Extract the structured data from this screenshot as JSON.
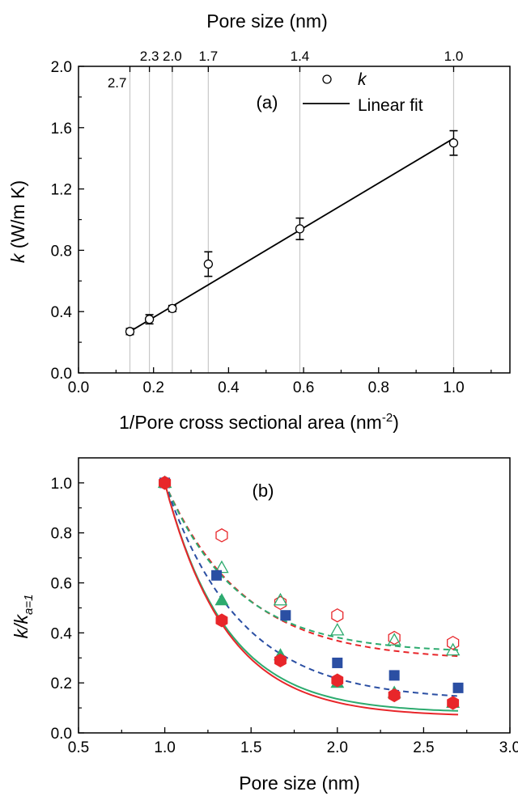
{
  "chart_data": [
    {
      "id": "a",
      "type": "scatter",
      "panel_label": "(a)",
      "xlabel": "1/Pore cross sectional area (nm",
      "xlabel_sup": "-2",
      "xlabel_end": ")",
      "ylabel_italic": "k",
      "ylabel_rest": " (W/m K)",
      "top_xlabel": "Pore size (nm)",
      "xlim": [
        0,
        1.15
      ],
      "ylim": [
        0,
        2.0
      ],
      "xticks": [
        "0.0",
        "0.2",
        "0.4",
        "0.6",
        "0.8",
        "1.0"
      ],
      "yticks": [
        "0.0",
        "0.4",
        "0.8",
        "1.2",
        "1.6",
        "2.0"
      ],
      "pore_lines": [
        {
          "x": 0.137,
          "label": "2.7"
        },
        {
          "x": 0.189,
          "label": "2.3"
        },
        {
          "x": 0.25,
          "label": "2.0"
        },
        {
          "x": 0.346,
          "label": "1.7"
        },
        {
          "x": 0.59,
          "label": "1.4"
        },
        {
          "x": 1.0,
          "label": "1.0"
        }
      ],
      "points": [
        {
          "x": 0.137,
          "y": 0.27,
          "err": 0.02
        },
        {
          "x": 0.189,
          "y": 0.35,
          "err": 0.03
        },
        {
          "x": 0.25,
          "y": 0.42,
          "err": 0.02
        },
        {
          "x": 0.346,
          "y": 0.71,
          "err": 0.08
        },
        {
          "x": 0.59,
          "y": 0.94,
          "err": 0.07
        },
        {
          "x": 1.0,
          "y": 1.5,
          "err": 0.08
        }
      ],
      "fit_line": {
        "x": [
          0.137,
          1.0
        ],
        "y": [
          0.27,
          1.53
        ]
      },
      "legend": [
        {
          "label": "k",
          "marker": "open-circle",
          "italic": true
        },
        {
          "label": "Linear fit",
          "marker": "line",
          "italic": false
        }
      ]
    },
    {
      "id": "b",
      "type": "scatter",
      "panel_label": "(b)",
      "xlabel": "Pore size (nm)",
      "ylabel_italic": "k/k",
      "ylabel_sub": "a=1",
      "xlim": [
        0.5,
        3.0
      ],
      "ylim": [
        0.0,
        1.1
      ],
      "xticks": [
        "0.5",
        "1.0",
        "1.5",
        "2.0",
        "2.5",
        "3.0"
      ],
      "yticks": [
        "0.0",
        "0.2",
        "0.4",
        "0.6",
        "0.8",
        "1.0"
      ],
      "series": [
        {
          "marker": "open-hexagon",
          "color": "#e8262a",
          "line": "dashed",
          "x": [
            1.0,
            1.33,
            1.67,
            2.0,
            2.33,
            2.67
          ],
          "y": [
            1.0,
            0.79,
            0.52,
            0.47,
            0.38,
            0.36
          ],
          "fit_k": 2.2,
          "fit_c": 0.29
        },
        {
          "marker": "open-triangle",
          "color": "#2dab6f",
          "line": "dashed",
          "x": [
            1.0,
            1.33,
            1.67,
            2.0,
            2.33,
            2.67
          ],
          "y": [
            1.0,
            0.66,
            0.53,
            0.41,
            0.37,
            0.33
          ],
          "fit_k": 2.4,
          "fit_c": 0.32
        },
        {
          "marker": "filled-square",
          "color": "#2b4fa3",
          "line": "dashed",
          "x": [
            1.0,
            1.3,
            1.7,
            2.0,
            2.33,
            2.7
          ],
          "y": [
            1.0,
            0.63,
            0.47,
            0.28,
            0.23,
            0.18
          ],
          "fit_k": 2.3,
          "fit_c": 0.13
        },
        {
          "marker": "filled-triangle",
          "color": "#2dab6f",
          "line": "solid",
          "x": [
            1.0,
            1.33,
            1.67,
            2.0,
            2.33,
            2.67
          ],
          "y": [
            1.0,
            0.53,
            0.31,
            0.2,
            0.16,
            0.12
          ],
          "fit_k": 2.8,
          "fit_c": 0.08
        },
        {
          "marker": "filled-hexagon",
          "color": "#e8262a",
          "line": "solid",
          "x": [
            1.0,
            1.33,
            1.67,
            2.0,
            2.33,
            2.67
          ],
          "y": [
            1.0,
            0.45,
            0.29,
            0.21,
            0.15,
            0.12
          ],
          "fit_k": 2.8,
          "fit_c": 0.065
        }
      ]
    }
  ]
}
